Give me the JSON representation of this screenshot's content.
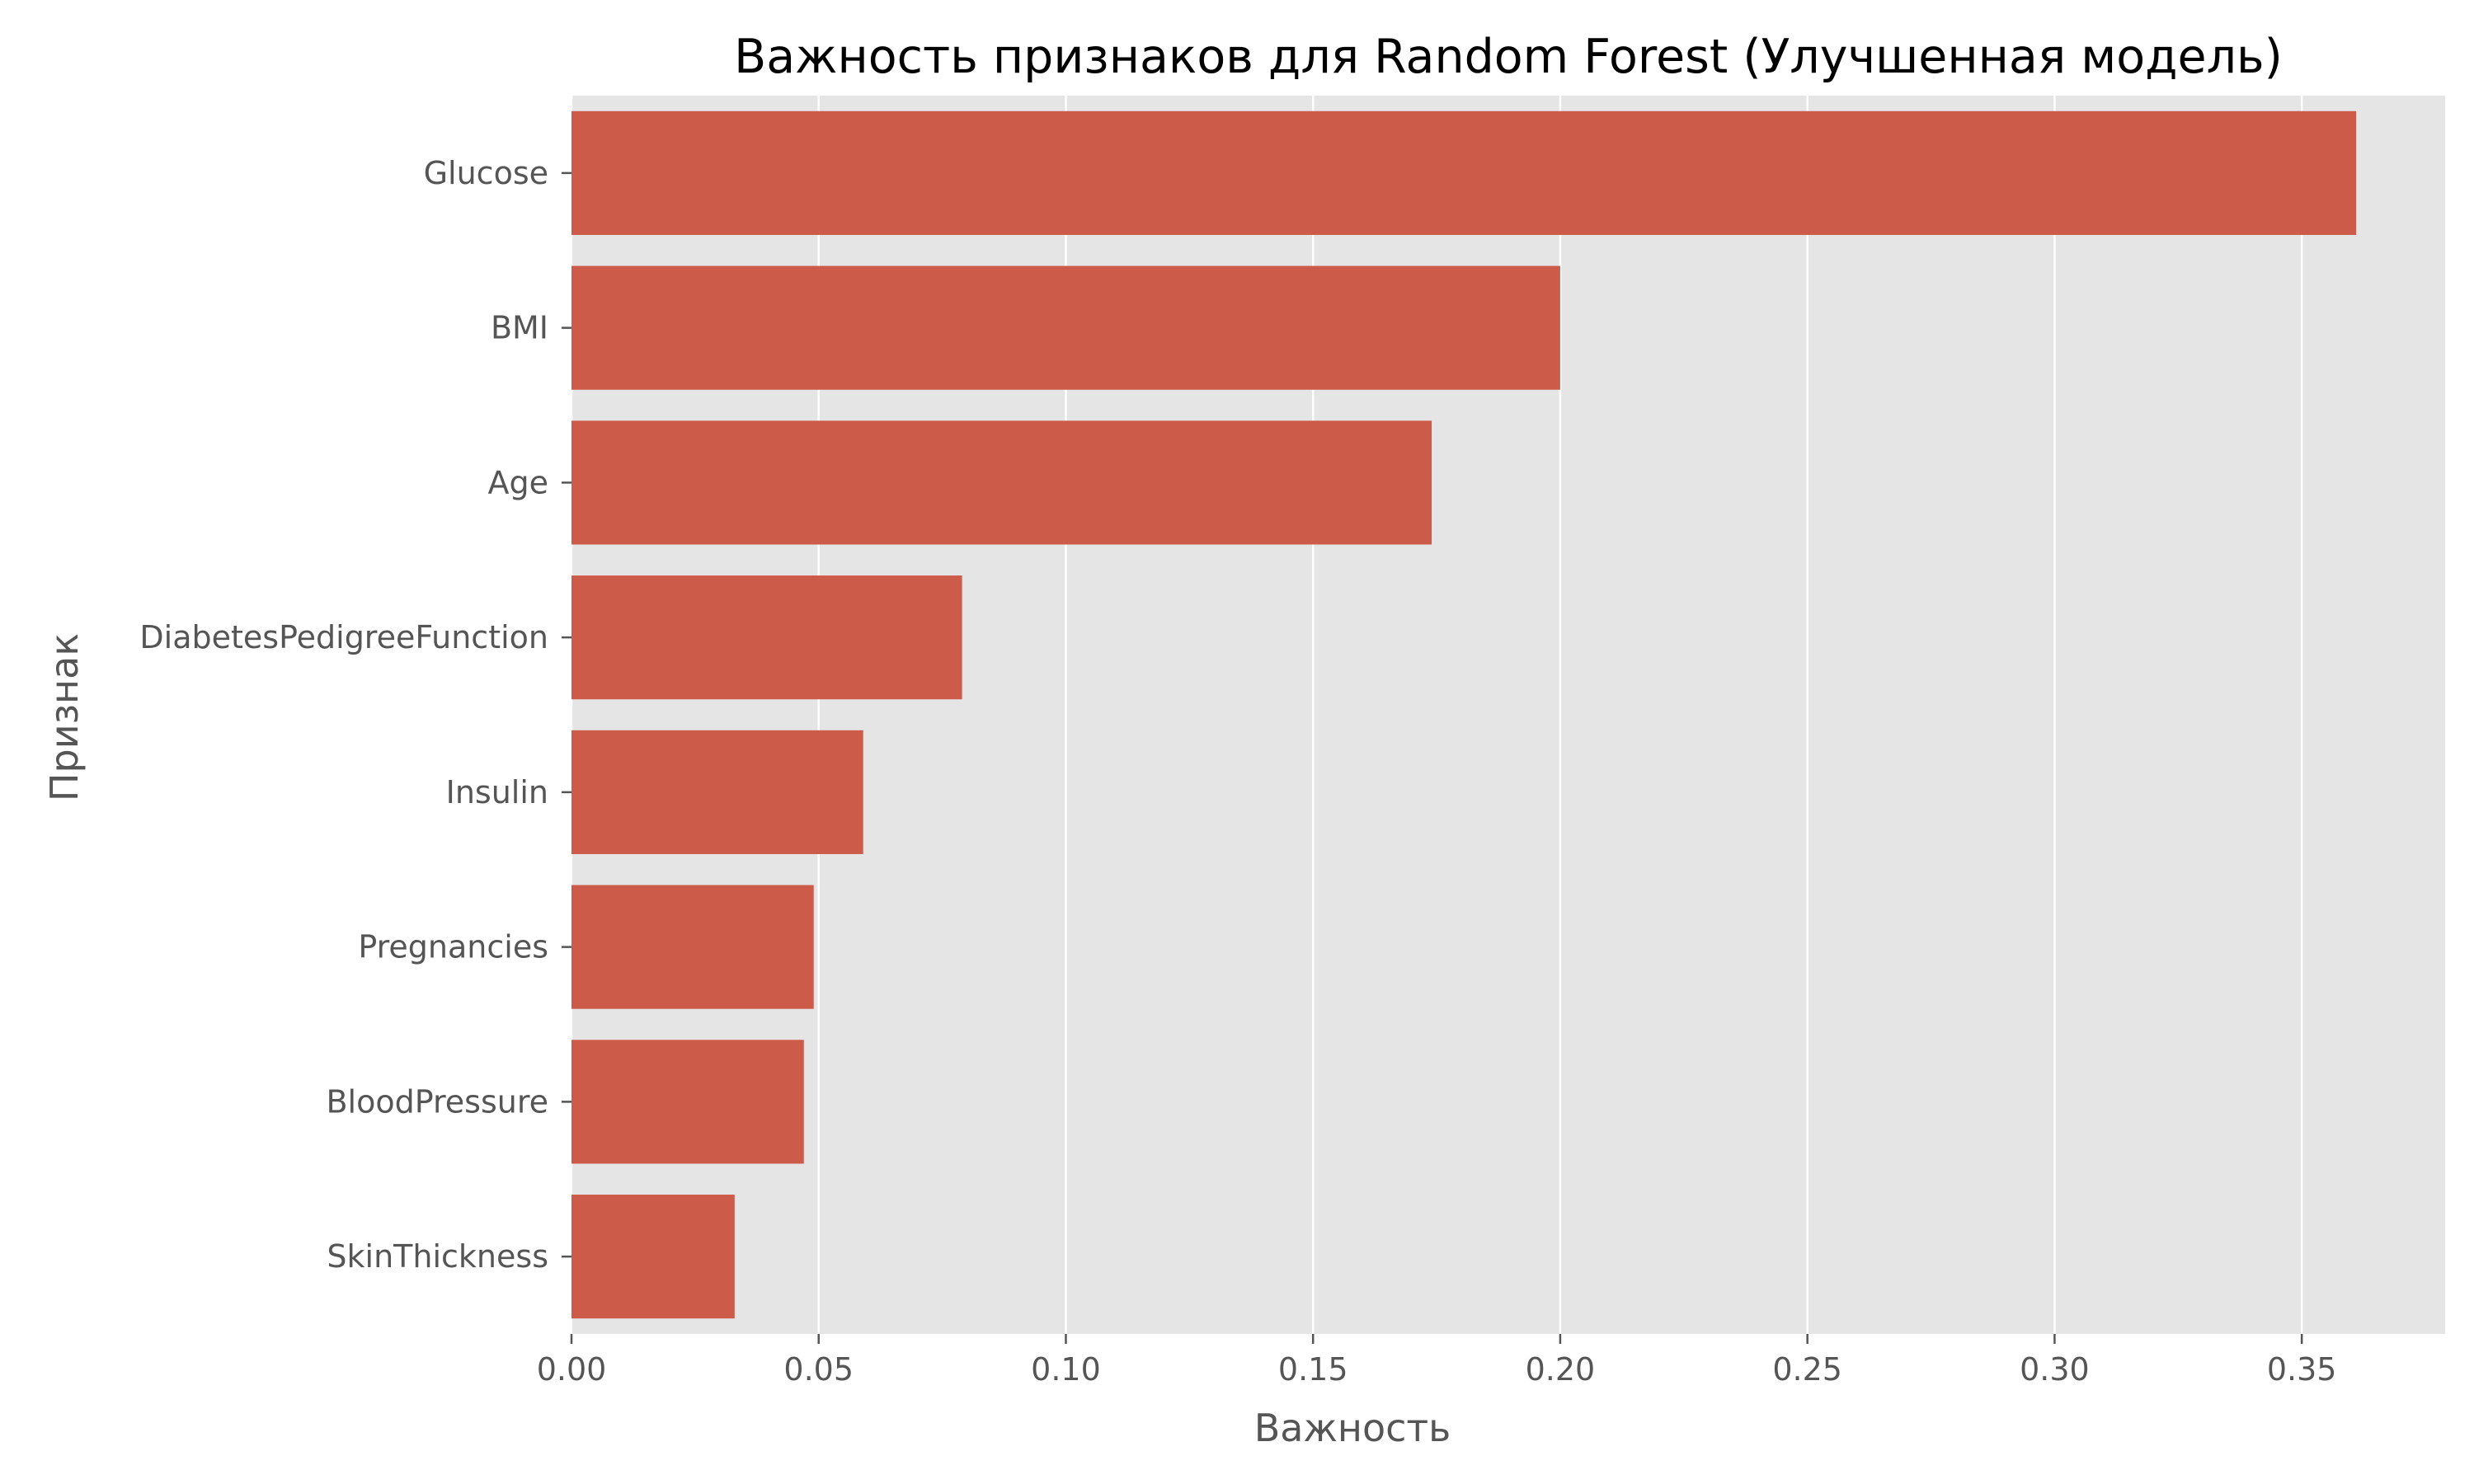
{
  "chart_data": {
    "type": "bar",
    "orientation": "horizontal",
    "title": "Важность признаков для Random Forest (Улучшенная модель)",
    "xlabel": "Важность",
    "ylabel": "Признак",
    "categories": [
      "Glucose",
      "BMI",
      "Age",
      "DiabetesPedigreeFunction",
      "Insulin",
      "Pregnancies",
      "BloodPressure",
      "SkinThickness"
    ],
    "values": [
      0.361,
      0.2,
      0.174,
      0.079,
      0.059,
      0.049,
      0.047,
      0.033
    ],
    "xlim": [
      0,
      0.379
    ],
    "xticks": [
      "0.00",
      "0.05",
      "0.10",
      "0.15",
      "0.20",
      "0.25",
      "0.30",
      "0.35"
    ],
    "grid": true,
    "colors": {
      "bar": "#cd5b49",
      "plot_background": "#e5e5e5",
      "grid": "#ffffff",
      "tick": "#555555",
      "title": "#000000"
    }
  }
}
